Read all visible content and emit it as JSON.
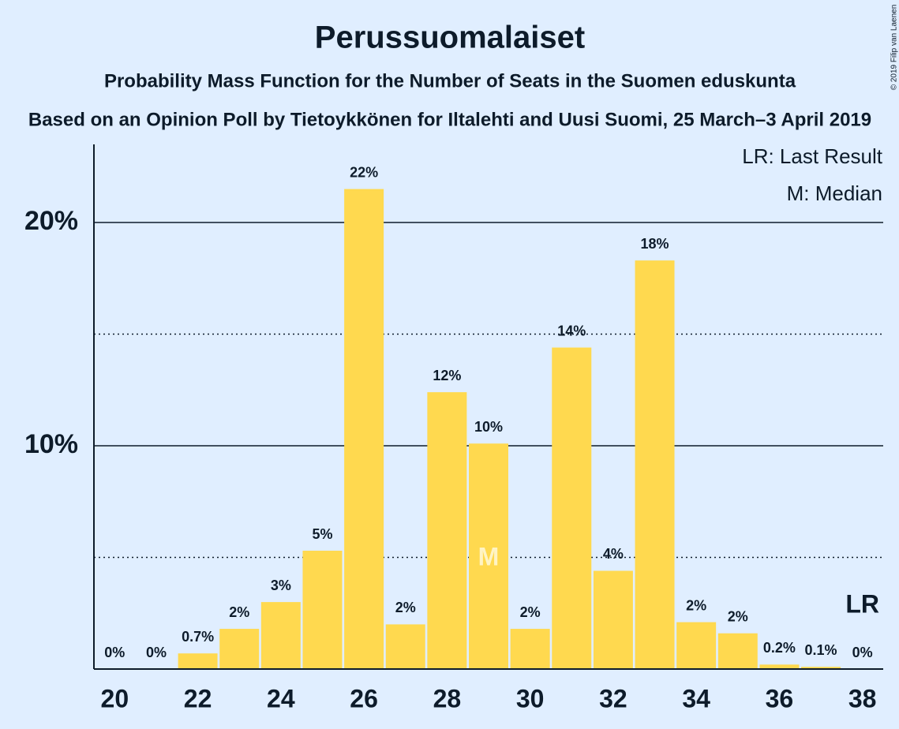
{
  "chart_data": {
    "type": "bar",
    "title": "Perussuomalaiset",
    "subtitle": "Probability Mass Function for the Number of Seats in the Suomen eduskunta",
    "subtitle2": "Based on an Opinion Poll by Tietoykkönen for Iltalehti and Uusi Suomi, 25 March–3 April 2019",
    "copyright": "© 2019 Filip van Laenen",
    "x": [
      20,
      21,
      22,
      23,
      24,
      25,
      26,
      27,
      28,
      29,
      30,
      31,
      32,
      33,
      34,
      35,
      36,
      37,
      38
    ],
    "values": [
      0,
      0,
      0.7,
      1.8,
      3.0,
      5.3,
      21.5,
      2.0,
      12.4,
      10.1,
      1.8,
      14.4,
      4.4,
      18.3,
      2.1,
      1.6,
      0.2,
      0.1,
      0
    ],
    "value_labels": [
      "0%",
      "0%",
      "0.7%",
      "2%",
      "3%",
      "5%",
      "22%",
      "2%",
      "12%",
      "10%",
      "2%",
      "14%",
      "4%",
      "18%",
      "2%",
      "2%",
      "0.2%",
      "0.1%",
      "0%"
    ],
    "color": "#ffd94f",
    "xlim": [
      19.5,
      38.5
    ],
    "xticks": [
      20,
      22,
      24,
      26,
      28,
      30,
      32,
      34,
      36,
      38
    ],
    "ylim": [
      0,
      23.5
    ],
    "yticks": [
      {
        "value": 10,
        "label": "10%"
      },
      {
        "value": 20,
        "label": "20%"
      }
    ],
    "minor_yticks": [
      5,
      15
    ],
    "grid": true,
    "median": {
      "x": 29,
      "label": "M"
    },
    "last_result": {
      "x": 38,
      "label": "LR"
    },
    "legend": [
      "LR: Last Result",
      "M: Median"
    ]
  }
}
